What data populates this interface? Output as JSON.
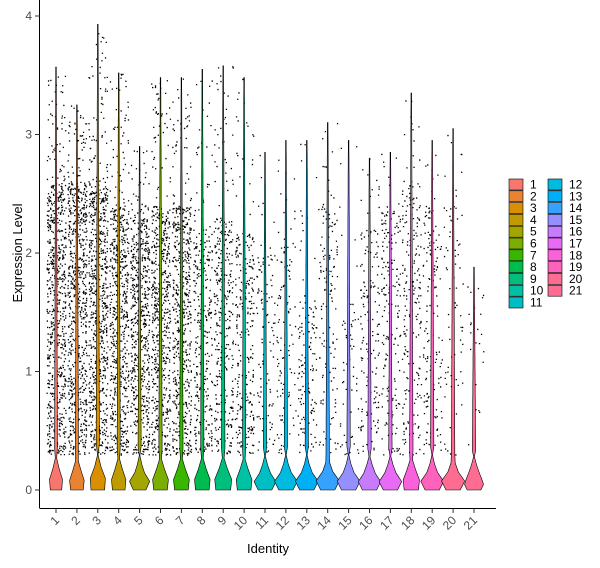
{
  "chart_data": {
    "type": "violin",
    "xlabel": "Identity",
    "ylabel": "Expression Level",
    "ylim": [
      0,
      4
    ],
    "yticks": [
      "0",
      "1",
      "2",
      "3",
      "4"
    ],
    "grid": false,
    "legend_position": "right",
    "categories": [
      "1",
      "2",
      "3",
      "4",
      "5",
      "6",
      "7",
      "8",
      "9",
      "10",
      "11",
      "12",
      "13",
      "14",
      "15",
      "16",
      "17",
      "18",
      "19",
      "20",
      "21"
    ],
    "colors": [
      "#F8766D",
      "#EA8331",
      "#D89000",
      "#C09B00",
      "#A3A500",
      "#7CAE00",
      "#39B600",
      "#00BB4E",
      "#00BF7D",
      "#00C1A3",
      "#00BFC4",
      "#00BAE0",
      "#00B0F6",
      "#35A2FF",
      "#9590FF",
      "#C77CFF",
      "#E76BF3",
      "#FA62DB",
      "#FF62BC",
      "#FF6C91",
      "#FF6C91"
    ],
    "series": [
      {
        "name": "1",
        "max": 3.57,
        "dense_top": 2.6,
        "base_width": 0.5,
        "point_density": 1.0
      },
      {
        "name": "2",
        "max": 3.25,
        "dense_top": 2.6,
        "base_width": 0.55,
        "point_density": 1.0
      },
      {
        "name": "3",
        "max": 3.93,
        "dense_top": 2.6,
        "base_width": 0.6,
        "point_density": 1.0
      },
      {
        "name": "4",
        "max": 3.52,
        "dense_top": 2.4,
        "base_width": 0.55,
        "point_density": 0.9
      },
      {
        "name": "5",
        "max": 2.9,
        "dense_top": 2.3,
        "base_width": 0.55,
        "point_density": 0.85
      },
      {
        "name": "6",
        "max": 3.48,
        "dense_top": 2.4,
        "base_width": 0.6,
        "point_density": 0.85
      },
      {
        "name": "7",
        "max": 3.48,
        "dense_top": 2.4,
        "base_width": 0.6,
        "point_density": 0.8
      },
      {
        "name": "8",
        "max": 3.55,
        "dense_top": 2.2,
        "base_width": 0.6,
        "point_density": 0.45
      },
      {
        "name": "9",
        "max": 3.58,
        "dense_top": 2.3,
        "base_width": 0.65,
        "point_density": 0.5
      },
      {
        "name": "10",
        "max": 3.48,
        "dense_top": 2.2,
        "base_width": 0.6,
        "point_density": 0.4
      },
      {
        "name": "11",
        "max": 2.85,
        "dense_top": 2.0,
        "base_width": 0.6,
        "point_density": 0.15
      },
      {
        "name": "12",
        "max": 2.95,
        "dense_top": 2.2,
        "base_width": 0.62,
        "point_density": 0.15
      },
      {
        "name": "13",
        "max": 2.95,
        "dense_top": 1.6,
        "base_width": 0.62,
        "point_density": 0.2
      },
      {
        "name": "14",
        "max": 3.1,
        "dense_top": 2.4,
        "base_width": 0.62,
        "point_density": 0.2
      },
      {
        "name": "15",
        "max": 2.95,
        "dense_top": 1.6,
        "base_width": 0.62,
        "point_density": 0.08
      },
      {
        "name": "16",
        "max": 2.8,
        "dense_top": 2.2,
        "base_width": 0.62,
        "point_density": 0.22
      },
      {
        "name": "17",
        "max": 2.85,
        "dense_top": 2.4,
        "base_width": 0.62,
        "point_density": 0.25
      },
      {
        "name": "18",
        "max": 3.35,
        "dense_top": 2.6,
        "base_width": 0.62,
        "point_density": 0.3
      },
      {
        "name": "19",
        "max": 2.95,
        "dense_top": 2.4,
        "base_width": 0.62,
        "point_density": 0.22
      },
      {
        "name": "20",
        "max": 3.05,
        "dense_top": 2.4,
        "base_width": 0.62,
        "point_density": 0.1
      },
      {
        "name": "21",
        "max": 1.88,
        "dense_top": 1.8,
        "base_width": 0.6,
        "point_density": 0.02
      }
    ]
  }
}
